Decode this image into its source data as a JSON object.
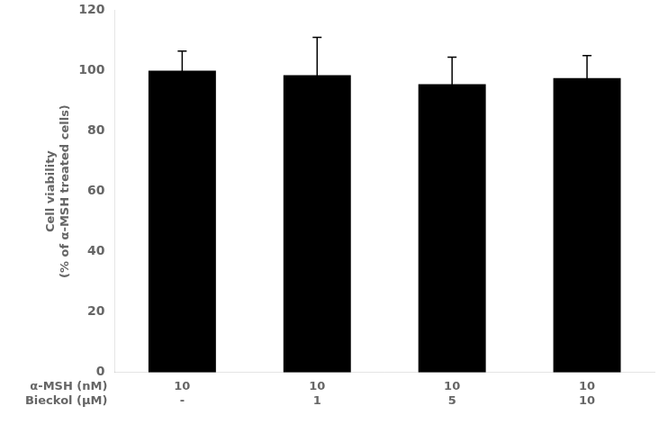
{
  "chart_data": {
    "type": "bar",
    "ylabel": "Cell viability\n(% of α-MSH treated cells)",
    "categories": [
      [
        "10",
        "-"
      ],
      [
        "10",
        "1"
      ],
      [
        "10",
        "5"
      ],
      [
        "10",
        "10"
      ]
    ],
    "annotations": [
      "α-MSH (nM)",
      "Bieckol (μM)"
    ],
    "values": [
      100.0,
      98.5,
      95.5,
      97.5
    ],
    "errors": [
      6.5,
      12.5,
      9.0,
      7.5
    ],
    "color": "#000000",
    "ylim": [
      0,
      120
    ],
    "yticks": [
      0,
      20,
      40,
      60,
      80,
      100,
      120
    ],
    "grid": false
  }
}
